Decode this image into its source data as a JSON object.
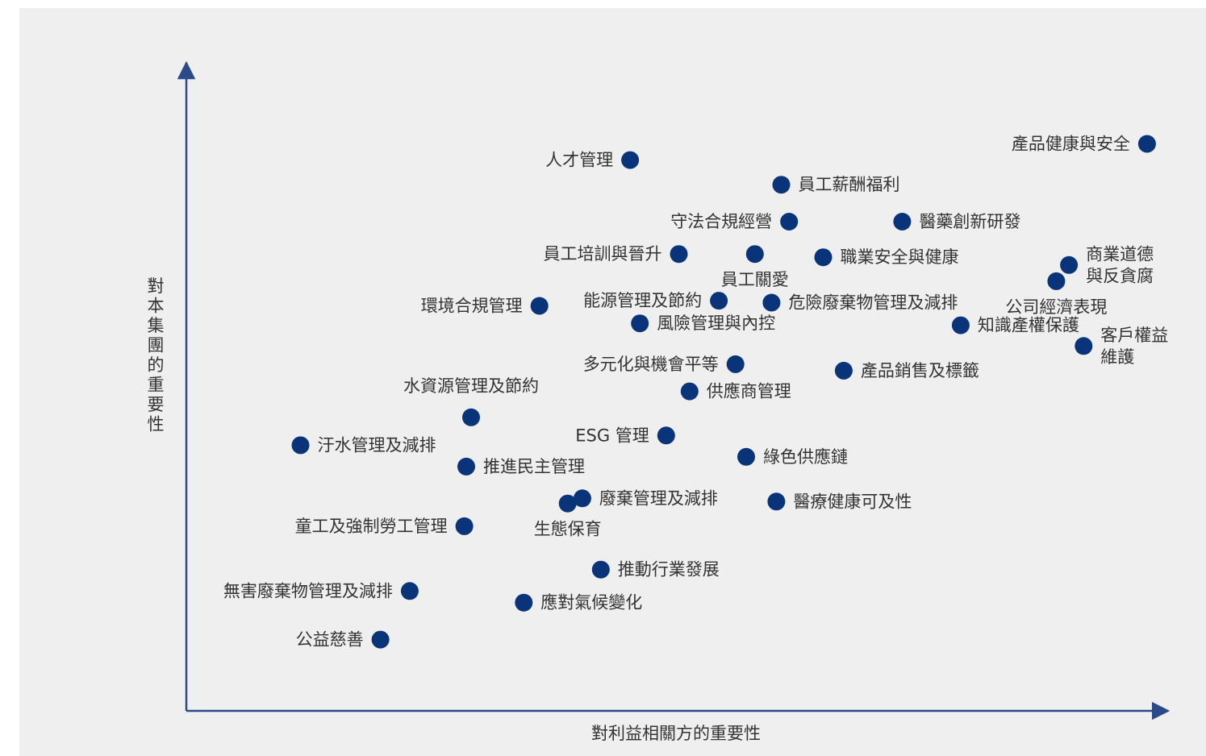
{
  "chart_data": {
    "type": "scatter",
    "xlabel": "對利益相關方的重要性",
    "ylabel": "對本集團的重要性",
    "xlim": [
      0,
      100
    ],
    "ylim": [
      0,
      100
    ],
    "grid": false,
    "point_color": "#0a347a",
    "axis_color": "#2a4a8a",
    "points": [
      {
        "label": [
          "產品健康與安全"
        ],
        "x": 98.5,
        "y": 87.5,
        "anchor": "left"
      },
      {
        "label": [
          "人才管理"
        ],
        "x": 45.5,
        "y": 85.0,
        "anchor": "left"
      },
      {
        "label": [
          "員工薪酬福利"
        ],
        "x": 61.0,
        "y": 81.2,
        "anchor": "right"
      },
      {
        "label": [
          "守法合規經營"
        ],
        "x": 61.8,
        "y": 75.5,
        "anchor": "left"
      },
      {
        "label": [
          "醫藥創新研發"
        ],
        "x": 73.4,
        "y": 75.5,
        "anchor": "right"
      },
      {
        "label": [
          "員工培訓與晉升"
        ],
        "x": 50.5,
        "y": 70.5,
        "anchor": "left"
      },
      {
        "label": [
          "員工關愛"
        ],
        "x": 58.3,
        "y": 70.5,
        "anchor": "below"
      },
      {
        "label": [
          "職業安全與健康"
        ],
        "x": 65.3,
        "y": 70.0,
        "anchor": "right"
      },
      {
        "label": [
          "商業道德",
          "與反貪腐"
        ],
        "x": 90.5,
        "y": 68.8,
        "anchor": "right"
      },
      {
        "label": [
          "公司經濟表現"
        ],
        "x": 89.2,
        "y": 66.3,
        "anchor": "below"
      },
      {
        "label": [
          "環境合規管理"
        ],
        "x": 36.2,
        "y": 62.5,
        "anchor": "left"
      },
      {
        "label": [
          "能源管理及節約"
        ],
        "x": 54.6,
        "y": 63.3,
        "anchor": "left"
      },
      {
        "label": [
          "危險廢棄物管理及減排"
        ],
        "x": 60.0,
        "y": 63.0,
        "anchor": "right"
      },
      {
        "label": [
          "風險管理與內控"
        ],
        "x": 46.5,
        "y": 59.8,
        "anchor": "right"
      },
      {
        "label": [
          "知識產權保護"
        ],
        "x": 79.4,
        "y": 59.5,
        "anchor": "right"
      },
      {
        "label": [
          "客戶權益",
          "維護"
        ],
        "x": 92.0,
        "y": 56.3,
        "anchor": "right"
      },
      {
        "label": [
          "多元化與機會平等"
        ],
        "x": 56.3,
        "y": 53.5,
        "anchor": "left"
      },
      {
        "label": [
          "產品銷售及標籤"
        ],
        "x": 67.4,
        "y": 52.5,
        "anchor": "right"
      },
      {
        "label": [
          "供應商管理"
        ],
        "x": 51.6,
        "y": 49.3,
        "anchor": "right"
      },
      {
        "label": [
          "水資源管理及節約"
        ],
        "x": 29.2,
        "y": 45.3,
        "anchor": "above"
      },
      {
        "label": [
          "汙水管理及減排"
        ],
        "x": 11.7,
        "y": 41.0,
        "anchor": "right"
      },
      {
        "label": [
          "ESG 管理"
        ],
        "x": 49.2,
        "y": 42.5,
        "anchor": "left"
      },
      {
        "label": [
          "推進民主管理"
        ],
        "x": 28.7,
        "y": 37.7,
        "anchor": "right"
      },
      {
        "label": [
          "綠色供應鏈"
        ],
        "x": 57.4,
        "y": 39.2,
        "anchor": "right"
      },
      {
        "label": [
          "廢棄管理及減排"
        ],
        "x": 40.6,
        "y": 32.8,
        "anchor": "right"
      },
      {
        "label": [
          "醫療健康可及性"
        ],
        "x": 60.5,
        "y": 32.3,
        "anchor": "right"
      },
      {
        "label": [
          "生態保育"
        ],
        "x": 39.1,
        "y": 32.0,
        "anchor": "below"
      },
      {
        "label": [
          "童工及強制勞工管理"
        ],
        "x": 28.5,
        "y": 28.5,
        "anchor": "left"
      },
      {
        "label": [
          "推動行業發展"
        ],
        "x": 42.5,
        "y": 21.8,
        "anchor": "right"
      },
      {
        "label": [
          "無害廢棄物管理及減排"
        ],
        "x": 22.9,
        "y": 18.5,
        "anchor": "left"
      },
      {
        "label": [
          "應對氣候變化"
        ],
        "x": 34.6,
        "y": 16.7,
        "anchor": "right"
      },
      {
        "label": [
          "公益慈善"
        ],
        "x": 19.9,
        "y": 11.0,
        "anchor": "left"
      }
    ]
  }
}
